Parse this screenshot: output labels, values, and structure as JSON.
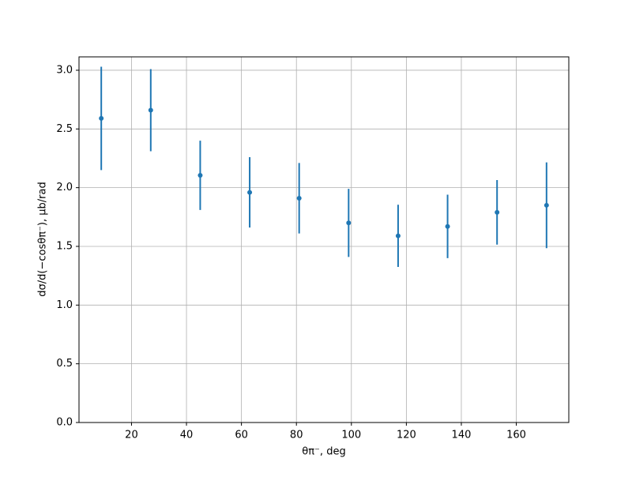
{
  "chart_data": {
    "type": "errorbar",
    "x_label": "θπ⁻, deg",
    "y_label": "dσ/d(−cosθπ⁻), μb/rad",
    "x": [
      9,
      27,
      45,
      63,
      81,
      99,
      117,
      135,
      153,
      171
    ],
    "values": [
      2.59,
      2.66,
      2.105,
      1.96,
      1.91,
      1.7,
      1.59,
      1.67,
      1.79,
      1.85
    ],
    "errors": [
      0.44,
      0.35,
      0.295,
      0.3,
      0.3,
      0.29,
      0.265,
      0.27,
      0.275,
      0.365
    ],
    "color": "#1f77b4",
    "xlim": [
      0.9,
      179.1
    ],
    "ylim": [
      0,
      3.114
    ],
    "xticks": [
      20,
      40,
      60,
      80,
      100,
      120,
      140,
      160
    ],
    "yticks": [
      {
        "value": 0,
        "label": "0.0"
      },
      0.5,
      {
        "value": 1,
        "label": "1.0"
      },
      1.5,
      {
        "value": 2,
        "label": "2.0"
      },
      2.5,
      {
        "value": 3,
        "label": "3.0"
      }
    ],
    "grid": true
  }
}
